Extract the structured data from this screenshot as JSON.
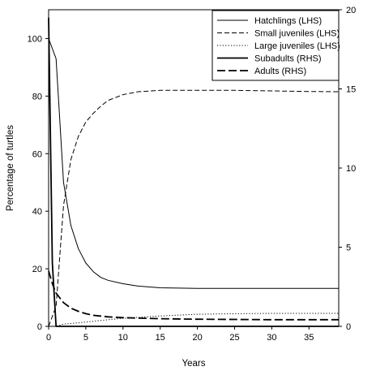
{
  "chart_data": {
    "type": "line",
    "title": "",
    "xlabel": "Years",
    "ylabel": "Percentage of turtles",
    "xlim": [
      0,
      39
    ],
    "ylim": [
      0,
      110
    ],
    "y2lim": [
      0,
      20
    ],
    "xticks": [
      0,
      5,
      10,
      15,
      20,
      25,
      30,
      35
    ],
    "yticks": [
      0,
      20,
      40,
      60,
      80,
      100
    ],
    "y2ticks": [
      0,
      5,
      10,
      15,
      20
    ],
    "legend_position": "top-right",
    "series": [
      {
        "name": "Hatchlings (LHS)",
        "axis": "left",
        "style": "solid-thin",
        "x": [
          0,
          1,
          2,
          3,
          4,
          5,
          6,
          7,
          8,
          10,
          12,
          15,
          20,
          25,
          30,
          35,
          39
        ],
        "y": [
          100,
          93,
          50,
          35,
          27,
          22,
          19,
          17,
          16,
          14.8,
          14,
          13.4,
          13.2,
          13.2,
          13.2,
          13.2,
          13.2
        ]
      },
      {
        "name": "Small juveniles (LHS)",
        "axis": "left",
        "style": "dash-thin",
        "x": [
          0,
          1,
          2,
          3,
          4,
          5,
          6,
          7,
          8,
          10,
          12,
          15,
          20,
          25,
          30,
          35,
          39
        ],
        "y": [
          0,
          7,
          42,
          58,
          66,
          71,
          74,
          76.5,
          78.5,
          80.5,
          81.5,
          82,
          82,
          82,
          81.8,
          81.6,
          81.5
        ]
      },
      {
        "name": "Large juveniles (LHS)",
        "axis": "left",
        "style": "dot-thin",
        "x": [
          0,
          1,
          2,
          3,
          5,
          8,
          10,
          15,
          20,
          25,
          30,
          35,
          39
        ],
        "y": [
          0,
          0,
          0.8,
          1,
          1.5,
          2.3,
          2.8,
          3.6,
          4.2,
          4.4,
          4.5,
          4.5,
          4.5
        ]
      },
      {
        "name": "Subadults (RHS)",
        "axis": "right",
        "style": "solid-thick",
        "x": [
          0,
          0.5,
          1,
          2,
          5,
          10,
          20,
          39
        ],
        "y": [
          19.5,
          4,
          0,
          0,
          0,
          0,
          0,
          0
        ]
      },
      {
        "name": "Adults (RHS)",
        "axis": "right",
        "style": "dash-thick",
        "x": [
          0,
          0.5,
          1,
          2,
          3,
          4,
          5,
          6,
          8,
          10,
          15,
          20,
          30,
          39
        ],
        "y": [
          3.5,
          2.7,
          2.1,
          1.5,
          1.15,
          0.95,
          0.8,
          0.7,
          0.6,
          0.55,
          0.48,
          0.45,
          0.42,
          0.42
        ]
      }
    ]
  }
}
